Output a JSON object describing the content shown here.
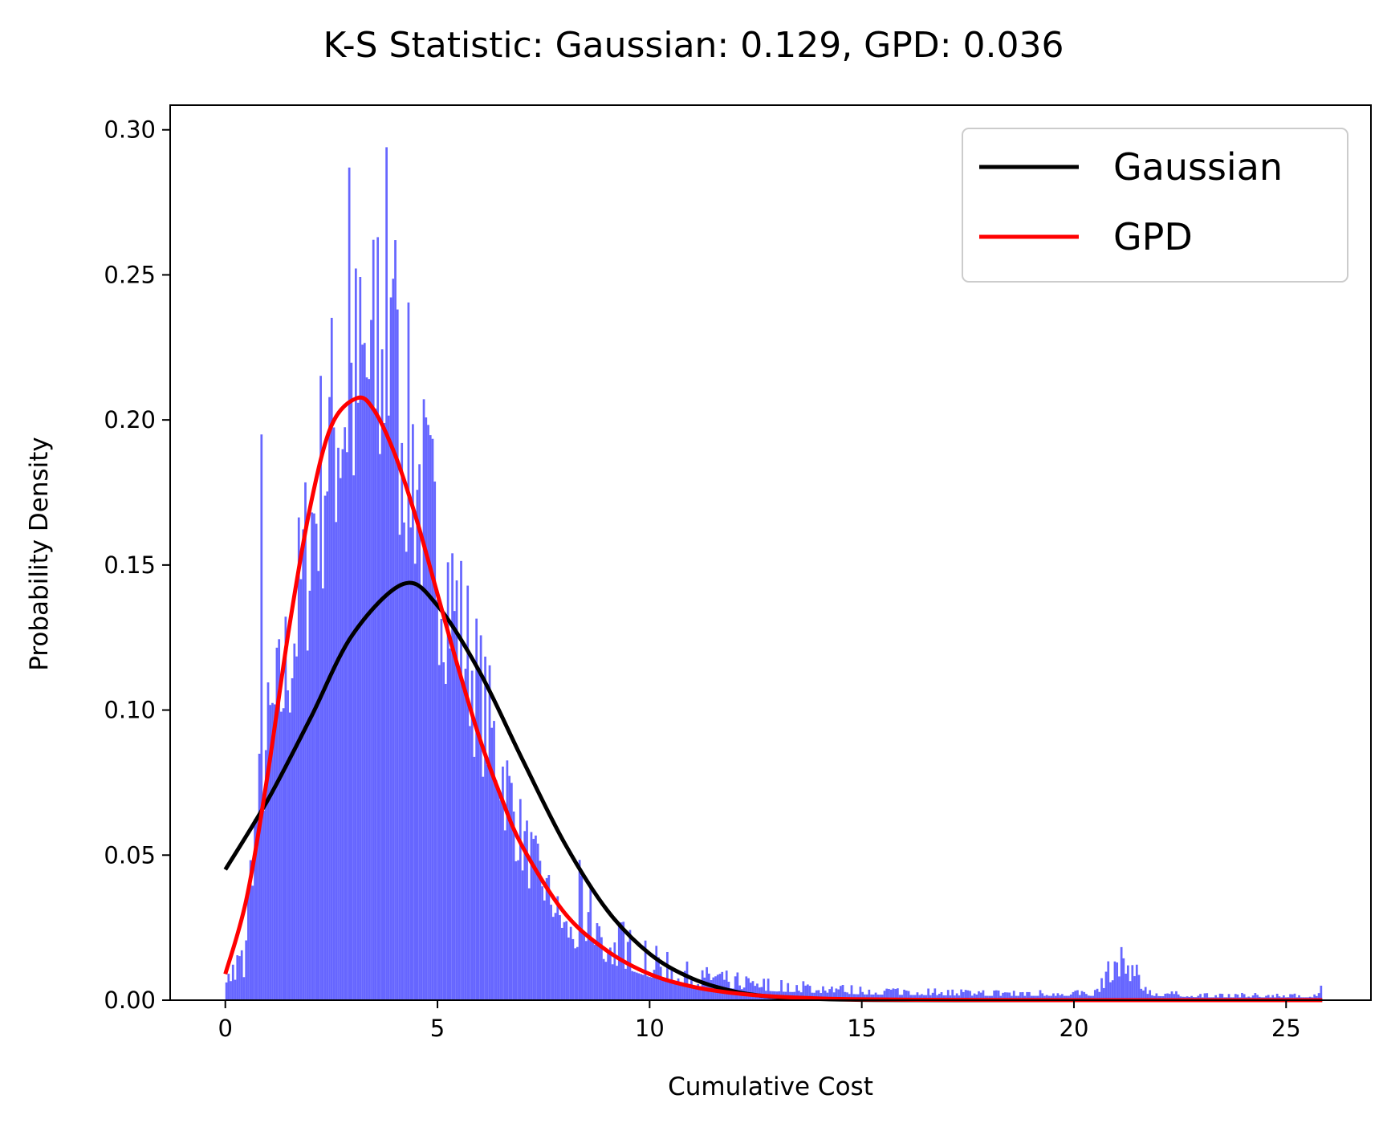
{
  "chart_data": {
    "type": "histogram",
    "title": "K-S Statistic: Gaussian: 0.129, GPD: 0.036",
    "xlabel": "Cumulative Cost",
    "ylabel": "Probability Density",
    "xlim": [
      -1.3,
      27.0
    ],
    "ylim": [
      0,
      0.3085
    ],
    "x_ticks": [
      0,
      5,
      10,
      15,
      20,
      25
    ],
    "x_tick_labels": [
      "0",
      "5",
      "10",
      "15",
      "20",
      "25"
    ],
    "y_ticks": [
      0.0,
      0.05,
      0.1,
      0.15,
      0.2,
      0.25,
      0.3
    ],
    "y_tick_labels": [
      "0.00",
      "0.05",
      "0.10",
      "0.15",
      "0.20",
      "0.25",
      "0.30"
    ],
    "grid": false,
    "legend_position": "top-right",
    "histogram": {
      "color": "#6666ff",
      "bin_range": [
        0,
        25.85
      ],
      "bins": 500,
      "approx_density_profile": {
        "x": [
          0.0,
          0.45,
          0.5,
          0.6,
          0.8,
          1.0,
          1.3,
          1.6,
          2.0,
          2.4,
          2.8,
          3.1,
          3.5,
          3.8,
          4.2,
          4.6,
          5.0,
          5.5,
          6.0,
          6.5,
          7.0,
          7.5,
          8.0,
          8.5,
          9.0,
          10.0,
          11.0,
          12.0,
          13.0,
          15.0,
          18.0,
          20.5,
          21.0,
          21.4,
          21.8,
          23.0,
          25.7,
          25.85
        ],
        "y": [
          0.006,
          0.008,
          0.025,
          0.045,
          0.07,
          0.09,
          0.105,
          0.125,
          0.16,
          0.19,
          0.205,
          0.21,
          0.215,
          0.215,
          0.2,
          0.175,
          0.155,
          0.13,
          0.105,
          0.08,
          0.055,
          0.04,
          0.025,
          0.017,
          0.013,
          0.008,
          0.005,
          0.004,
          0.003,
          0.002,
          0.0015,
          0.0015,
          0.008,
          0.006,
          0.0015,
          0.001,
          0.001,
          0.004
        ]
      },
      "notable_spikes": [
        {
          "x": 0.85,
          "y": 0.195
        },
        {
          "x": 2.9,
          "y": 0.287
        },
        {
          "x": 3.8,
          "y": 0.294
        },
        {
          "x": 3.6,
          "y": 0.263
        },
        {
          "x": 4.0,
          "y": 0.262
        },
        {
          "x": 21.0,
          "y": 0.013
        },
        {
          "x": 21.3,
          "y": 0.012
        },
        {
          "x": 25.8,
          "y": 0.005
        }
      ]
    },
    "series": [
      {
        "name": "Gaussian",
        "color": "#000000",
        "x": [
          0,
          1,
          2,
          3,
          4.2,
          5,
          6,
          7,
          8,
          9,
          10,
          11,
          12,
          13,
          14,
          15,
          16,
          18,
          20,
          22,
          24,
          25.85
        ],
        "y": [
          0.045,
          0.069,
          0.097,
          0.126,
          0.1435,
          0.136,
          0.113,
          0.083,
          0.054,
          0.031,
          0.016,
          0.0075,
          0.003,
          0.001,
          0.0004,
          0.0001,
          3e-05,
          0,
          0,
          0,
          0,
          0
        ]
      },
      {
        "name": "GPD",
        "color": "#ff0000",
        "x": [
          0,
          0.5,
          1,
          1.5,
          2,
          2.5,
          3.1,
          3.5,
          4,
          4.5,
          5,
          5.5,
          6,
          6.5,
          7,
          8,
          9,
          10,
          11,
          12,
          13,
          14,
          15,
          17,
          19,
          21,
          23,
          25.85
        ],
        "y": [
          0.009,
          0.035,
          0.078,
          0.128,
          0.17,
          0.198,
          0.2075,
          0.2035,
          0.188,
          0.166,
          0.14,
          0.114,
          0.09,
          0.07,
          0.053,
          0.03,
          0.017,
          0.009,
          0.0047,
          0.0024,
          0.0012,
          0.0006,
          0.0003,
          0.0001,
          3e-05,
          1e-05,
          0,
          0
        ]
      }
    ]
  }
}
